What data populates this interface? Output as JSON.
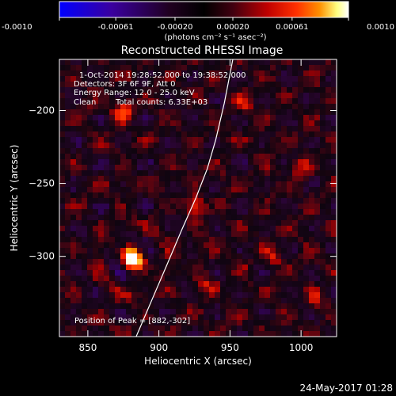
{
  "chart_data": {
    "type": "heatmap",
    "title": "Reconstructed RHESSI Image",
    "xlabel": "Heliocentric X (arcsec)",
    "ylabel": "Heliocentric Y (arcsec)",
    "xlim": [
      830,
      1025
    ],
    "ylim": [
      -355,
      -165
    ],
    "x_ticks": [
      850,
      900,
      950,
      1000
    ],
    "y_ticks": [
      -200,
      -250,
      -300
    ],
    "colorbar": {
      "range": [
        -0.001,
        0.001
      ],
      "tick_values": [
        -0.001,
        -0.00061,
        -0.0002,
        0.0002,
        0.00061,
        0.001
      ],
      "tick_labels": [
        "-0.0010",
        "-0.00061",
        "-0.00020",
        "0.00020",
        "0.00061",
        "0.0010"
      ],
      "unit_label": "(photons cm⁻² s⁻¹ asec⁻²)",
      "colors": [
        "#0000ff",
        "#3a00a0",
        "#200020",
        "#000000",
        "#300010",
        "#a00000",
        "#ff2000",
        "#ff8000",
        "#ffff80",
        "#ffffff"
      ]
    },
    "annotations": {
      "time_range": "1-Oct-2014 19:28:52.000 to 19:38:52.000",
      "detectors": "Detectors: 3F 6F 9F, Att 0",
      "energy": "Energy Range: 12.0 - 25.0 keV",
      "method": "Clean",
      "counts": "Total counts: 6.33E+03",
      "peak": "Position of Peak = [882,-302]"
    },
    "peak": {
      "x": 882,
      "y": -302,
      "value": 0.001
    },
    "limb": [
      [
        884,
        -355
      ],
      [
        895,
        -330
      ],
      [
        906,
        -305
      ],
      [
        916,
        -282
      ],
      [
        926,
        -260
      ],
      [
        934,
        -240
      ],
      [
        940,
        -220
      ],
      [
        946,
        -195
      ],
      [
        950,
        -175
      ],
      [
        952,
        -165
      ]
    ],
    "bright_sources": [
      {
        "x": 882,
        "y": -302,
        "value": 0.001
      },
      {
        "x": 875,
        "y": -200,
        "value": 0.00045
      },
      {
        "x": 925,
        "y": -265,
        "value": 0.0004
      },
      {
        "x": 980,
        "y": -300,
        "value": 0.0003
      },
      {
        "x": 1000,
        "y": -240,
        "value": 0.00028
      },
      {
        "x": 960,
        "y": -195,
        "value": 0.00025
      },
      {
        "x": 1010,
        "y": -330,
        "value": 0.00025
      },
      {
        "x": 935,
        "y": -320,
        "value": 0.00022
      }
    ],
    "grid": false
  },
  "footer": {
    "date": "24-May-2017 01:28"
  }
}
